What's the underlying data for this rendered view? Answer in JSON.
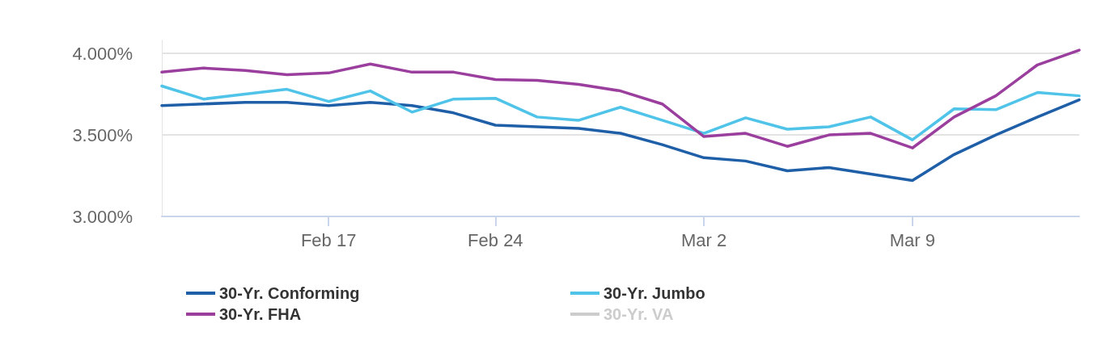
{
  "chart_data": {
    "type": "line",
    "categories": [
      null,
      null,
      null,
      null,
      "Feb 17",
      null,
      null,
      null,
      "Feb 24",
      null,
      null,
      null,
      null,
      "Mar 2",
      null,
      null,
      null,
      null,
      "Mar 9",
      null,
      null,
      null,
      null
    ],
    "series": [
      {
        "name": "30-Yr. Conforming",
        "color": "#1f5fa8",
        "values": [
          3.68,
          3.69,
          3.7,
          3.7,
          3.68,
          3.7,
          3.68,
          3.635,
          3.56,
          3.55,
          3.54,
          3.51,
          3.44,
          3.36,
          3.34,
          3.28,
          3.3,
          3.26,
          3.22,
          3.38,
          3.5,
          3.61,
          3.715
        ]
      },
      {
        "name": "30-Yr. Jumbo",
        "color": "#4fc3e8",
        "values": [
          3.8,
          3.72,
          3.75,
          3.78,
          3.705,
          3.77,
          3.64,
          3.72,
          3.725,
          3.61,
          3.59,
          3.67,
          3.59,
          3.51,
          3.605,
          3.535,
          3.55,
          3.61,
          3.47,
          3.66,
          3.655,
          3.76,
          3.74
        ]
      },
      {
        "name": "30-Yr. FHA",
        "color": "#9b3f9e",
        "values": [
          3.885,
          3.91,
          3.895,
          3.87,
          3.88,
          3.935,
          3.885,
          3.885,
          3.84,
          3.835,
          3.81,
          3.77,
          3.69,
          3.49,
          3.51,
          3.43,
          3.5,
          3.51,
          3.42,
          3.61,
          3.74,
          3.93,
          4.02
        ]
      },
      {
        "name": "30-Yr. VA",
        "color": "#cccccc",
        "values": [
          null,
          null,
          null,
          null,
          null,
          null,
          null,
          null,
          null,
          null,
          null,
          null,
          null,
          null,
          null,
          null,
          null,
          null,
          null,
          null,
          null,
          null,
          null
        ]
      }
    ],
    "ylim": [
      3,
      4.08
    ],
    "yticks": [
      {
        "value": 3,
        "label": "3.000%"
      },
      {
        "value": 3.5,
        "label": "3.500%"
      },
      {
        "value": 4,
        "label": "4.000%"
      }
    ],
    "grid": "y",
    "legend": "bottom",
    "marker": "none",
    "line_style": "solid"
  }
}
